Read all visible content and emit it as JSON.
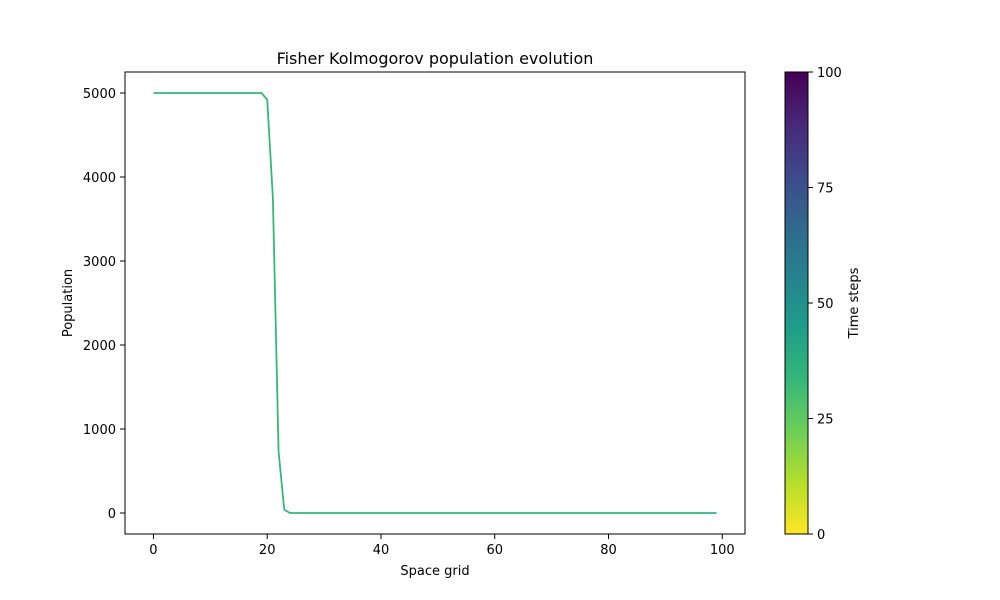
{
  "chart_data": {
    "type": "line",
    "title": "Fisher Kolmogorov population evolution",
    "xlabel": "Space grid",
    "ylabel": "Population",
    "xlim": [
      -5,
      104
    ],
    "ylim": [
      -250,
      5250
    ],
    "xticks": [
      "0",
      "20",
      "40",
      "60",
      "80",
      "100"
    ],
    "yticks": [
      "0",
      "1000",
      "2000",
      "3000",
      "4000",
      "5000"
    ],
    "grid": false,
    "series": [
      {
        "color": "#35b779",
        "x": [
          0,
          19,
          20,
          21,
          22,
          23,
          24,
          99
        ],
        "y": [
          5000,
          5000,
          4920,
          3750,
          730,
          40,
          0,
          0
        ]
      }
    ],
    "colorbar": {
      "label": "Time steps",
      "range": [
        0,
        100
      ],
      "ticks": [
        "0",
        "25",
        "50",
        "75",
        "100"
      ],
      "colormap": "viridis_r",
      "colors": [
        "#fde725",
        "#b5de2b",
        "#6ece58",
        "#35b779",
        "#1f9e89",
        "#26828e",
        "#31688e",
        "#3e4989",
        "#482878",
        "#440154"
      ]
    }
  }
}
